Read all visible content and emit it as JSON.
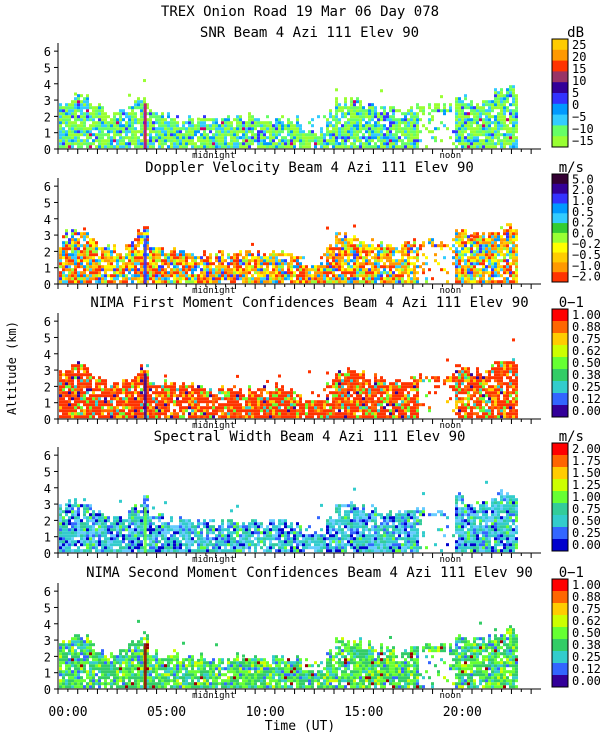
{
  "chart_data": {
    "type": "heatmap",
    "title_line1": "TREX Onion Road  19 Mar 06 Day 078",
    "xlabel": "Time (UT)",
    "ylabel": "Altitude (km)",
    "xlim": [
      0,
      24.5
    ],
    "x_ticks": [
      0,
      5,
      10,
      15,
      20
    ],
    "x_tick_labels": [
      "00:00",
      "05:00",
      "10:00",
      "15:00",
      "20:00"
    ],
    "markers": [
      {
        "label": "midnight",
        "x": 7.9
      },
      {
        "label": "noon",
        "x": 19.9
      }
    ],
    "panels": [
      {
        "title": "SNR Beam 4 Azi 111 Elev 90",
        "unit": "dB",
        "ylim": [
          0,
          6.5
        ],
        "y_ticks": [
          0,
          1,
          2,
          3,
          4,
          5,
          6
        ],
        "scale_labels": [
          "25",
          "20",
          "15",
          "10",
          "5",
          "0",
          "−5",
          "−10",
          "−15"
        ],
        "scale_colors": [
          "#ffcc00",
          "#ff9900",
          "#ff3300",
          "#993366",
          "#330099",
          "#3333ff",
          "#0099ff",
          "#33ccff",
          "#66ff66",
          "#99ff33"
        ],
        "field_colors": [
          "#99ff33",
          "#66ff66",
          "#33ccff",
          "#0099ff",
          "#3333ff",
          "#cc0066"
        ],
        "field_weights": [
          0.35,
          0.3,
          0.18,
          0.1,
          0.05,
          0.02
        ]
      },
      {
        "title": "Doppler Velocity Beam 4 Azi 111 Elev 90",
        "unit": "m/s",
        "ylim": [
          0,
          6.5
        ],
        "y_ticks": [
          0,
          1,
          2,
          3,
          4,
          5,
          6
        ],
        "scale_labels": [
          "5.0",
          "2.0",
          "1.0",
          "0.5",
          "0.2",
          "0.0",
          "−0.2",
          "−0.5",
          "−1.0",
          "−2.0"
        ],
        "scale_colors": [
          "#330033",
          "#330099",
          "#3333ff",
          "#0099ff",
          "#33ccff",
          "#33cc33",
          "#99ff33",
          "#ffff00",
          "#ffcc00",
          "#ff9900",
          "#ff3300"
        ],
        "field_colors": [
          "#ff3300",
          "#ff9900",
          "#ffcc00",
          "#ffff00",
          "#99ff33",
          "#33ccff",
          "#0099ff",
          "#3333ff"
        ],
        "field_weights": [
          0.2,
          0.2,
          0.15,
          0.12,
          0.1,
          0.1,
          0.08,
          0.05
        ]
      },
      {
        "title": "NIMA First Moment Confidences Beam 4 Azi 111 Elev 90",
        "unit": "0−1",
        "ylim": [
          0,
          6.5
        ],
        "y_ticks": [
          0,
          1,
          2,
          3,
          4,
          5,
          6
        ],
        "scale_labels": [
          "1.00",
          "0.88",
          "0.75",
          "0.62",
          "0.50",
          "0.38",
          "0.25",
          "0.12",
          "0.00"
        ],
        "scale_colors": [
          "#ff0000",
          "#ff6600",
          "#ffcc00",
          "#ccff00",
          "#66ff33",
          "#33cc66",
          "#33cccc",
          "#3366ff",
          "#330099"
        ],
        "field_colors": [
          "#ff3300",
          "#ff6600",
          "#ffcc00",
          "#66ff33",
          "#33cccc",
          "#330099"
        ],
        "field_weights": [
          0.55,
          0.15,
          0.1,
          0.1,
          0.06,
          0.04
        ]
      },
      {
        "title": "Spectral Width Beam 4 Azi 111 Elev 90",
        "unit": "m/s",
        "ylim": [
          0,
          6.5
        ],
        "y_ticks": [
          0,
          1,
          2,
          3,
          4,
          5,
          6
        ],
        "scale_labels": [
          "2.00",
          "1.75",
          "1.50",
          "1.25",
          "1.00",
          "0.75",
          "0.50",
          "0.25",
          "0.00"
        ],
        "scale_colors": [
          "#ff0000",
          "#ff6600",
          "#ffcc00",
          "#ccff00",
          "#66ff33",
          "#33cc99",
          "#33cccc",
          "#3366ff",
          "#0000cc"
        ],
        "field_colors": [
          "#33cccc",
          "#66ccff",
          "#33cc99",
          "#3366ff",
          "#0000cc",
          "#66ff33"
        ],
        "field_weights": [
          0.35,
          0.2,
          0.15,
          0.12,
          0.12,
          0.06
        ]
      },
      {
        "title": "NIMA Second Moment Confidences Beam 4 Azi 111 Elev 90",
        "unit": "0−1",
        "ylim": [
          0,
          6.5
        ],
        "y_ticks": [
          0,
          1,
          2,
          3,
          4,
          5,
          6
        ],
        "scale_labels": [
          "1.00",
          "0.88",
          "0.75",
          "0.62",
          "0.50",
          "0.38",
          "0.25",
          "0.12",
          "0.00"
        ],
        "scale_colors": [
          "#ff0000",
          "#ff6600",
          "#ffcc00",
          "#ccff00",
          "#66ff33",
          "#33cc66",
          "#33cccc",
          "#3366ff",
          "#330099"
        ],
        "field_colors": [
          "#33cc66",
          "#66ff33",
          "#33cccc",
          "#ccff00",
          "#3366ff",
          "#990000"
        ],
        "field_weights": [
          0.35,
          0.3,
          0.15,
          0.1,
          0.07,
          0.03
        ]
      }
    ]
  }
}
